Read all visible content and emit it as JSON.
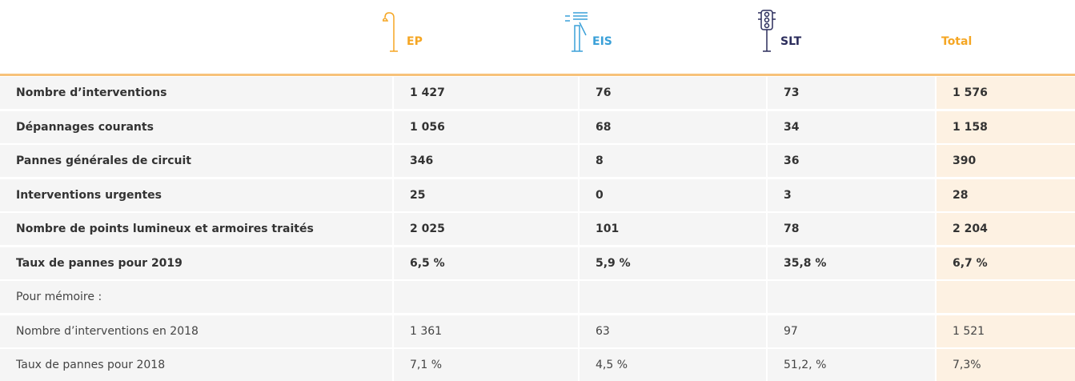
{
  "header": {
    "columns": [
      "EP",
      "EIS",
      "SLT",
      "Total"
    ]
  },
  "table": {
    "rows": [
      [
        "Nombre d’interventions",
        "1 427",
        "76",
        "73",
        "1 576"
      ],
      [
        "Dépannages courants",
        "1 056",
        "68",
        "34",
        "1 158"
      ],
      [
        "Pannes générales de circuit",
        "346",
        "8",
        "36",
        "390"
      ],
      [
        "Interventions urgentes",
        "25",
        "0",
        "3",
        "28"
      ],
      [
        "Nombre de points lumineux et armoires traités",
        "2 025",
        "101",
        "78",
        "2 204"
      ],
      [
        "Taux de pannes pour 2019",
        "6,5 %",
        "5,9 %",
        "35,8 %",
        "6,7 %"
      ]
    ]
  },
  "memo": {
    "title": "Pour mémoire :",
    "rows": [
      [
        "Nombre d’interventions en 2018",
        "1 361",
        "63",
        "97",
        "1 521"
      ],
      [
        "Taux de pannes pour 2018",
        "7,1 %",
        "4,5 %",
        "51,2, %",
        "7,3%"
      ]
    ]
  }
}
